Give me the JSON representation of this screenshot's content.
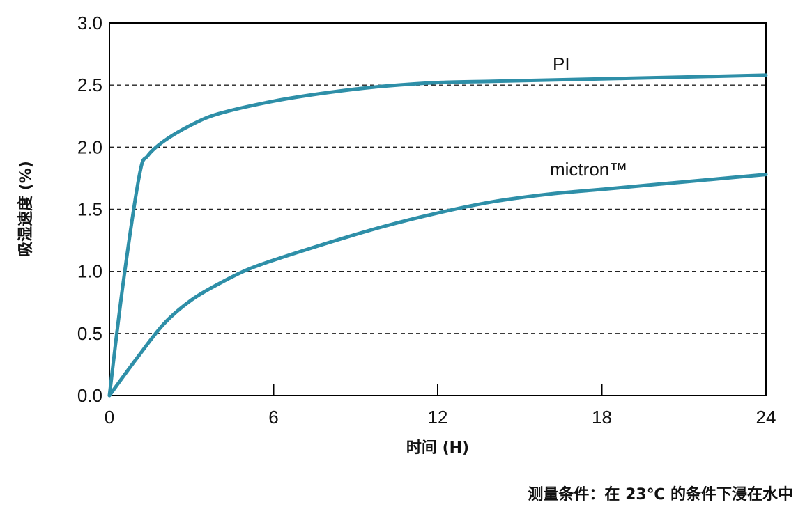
{
  "chart_data": {
    "type": "line",
    "xlabel": "时间 (H)",
    "ylabel": "吸湿速度 (%)",
    "xlim": [
      0,
      24
    ],
    "ylim": [
      0,
      3.0
    ],
    "x_ticks": [
      "0",
      "6",
      "12",
      "18",
      "24"
    ],
    "y_ticks": [
      "0.0",
      "0.5",
      "1.0",
      "1.5",
      "2.0",
      "2.5",
      "3.0"
    ],
    "grid": "horizontal dashed",
    "series_color": "#2e8fa8",
    "series": [
      {
        "name": "PI",
        "x": [
          0,
          0.5,
          1.1,
          1.4,
          2,
          3,
          4,
          6,
          8,
          10,
          12,
          14,
          16,
          18,
          20,
          22,
          24
        ],
        "y": [
          0,
          0.9,
          1.78,
          1.93,
          2.05,
          2.18,
          2.27,
          2.37,
          2.44,
          2.49,
          2.52,
          2.53,
          2.54,
          2.55,
          2.56,
          2.57,
          2.58
        ]
      },
      {
        "name": "mictron™",
        "x": [
          0,
          1,
          2,
          3,
          4,
          5,
          6,
          8,
          10,
          12,
          14,
          16,
          18,
          20,
          22,
          24
        ],
        "y": [
          0,
          0.3,
          0.58,
          0.77,
          0.9,
          1.01,
          1.09,
          1.23,
          1.36,
          1.47,
          1.56,
          1.62,
          1.66,
          1.7,
          1.74,
          1.78
        ]
      }
    ]
  },
  "footnote": "测量条件：在 23℃ 的条件下浸在水中"
}
